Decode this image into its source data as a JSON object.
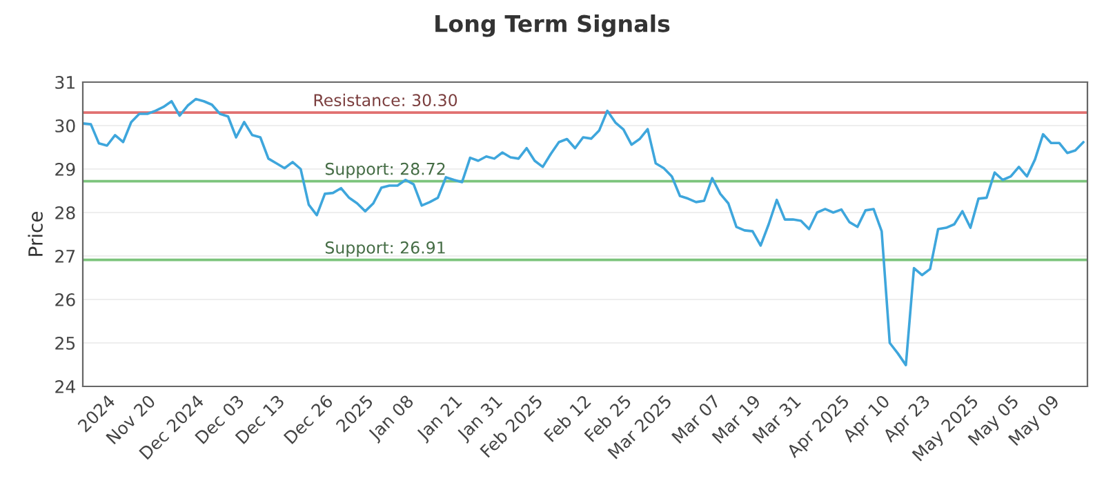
{
  "chart_data": {
    "type": "line",
    "title": "Long Term Signals",
    "ylabel": "Price",
    "categories": [
      null,
      null,
      null,
      "2024",
      null,
      null,
      null,
      null,
      "Nov 20",
      null,
      null,
      null,
      null,
      null,
      "Dec 2024",
      null,
      null,
      null,
      null,
      "Dec 03",
      null,
      null,
      null,
      null,
      "Dec 13",
      null,
      null,
      null,
      null,
      null,
      "Dec 26",
      null,
      null,
      null,
      null,
      "2025",
      null,
      null,
      null,
      null,
      "Jan 08",
      null,
      null,
      null,
      null,
      null,
      "Jan 21",
      null,
      null,
      null,
      null,
      "Jan 31",
      null,
      null,
      null,
      null,
      "Feb 2025",
      null,
      null,
      null,
      null,
      null,
      "Feb 12",
      null,
      null,
      null,
      null,
      "Feb 25",
      null,
      null,
      null,
      null,
      "Mar 2025",
      null,
      null,
      null,
      null,
      null,
      "Mar 07",
      null,
      null,
      null,
      null,
      "Mar 19",
      null,
      null,
      null,
      null,
      "Mar 31",
      null,
      null,
      null,
      null,
      null,
      "Apr 2025",
      null,
      null,
      null,
      null,
      "Apr 10",
      null,
      null,
      null,
      null,
      "Apr 23",
      null,
      null,
      null,
      null,
      null,
      "May 2025",
      null,
      null,
      null,
      null,
      "May 05",
      null,
      null,
      null,
      null,
      "May 09",
      null,
      null,
      null,
      null
    ],
    "series": [
      {
        "color": "#3ea6dc",
        "values": [
          30.05,
          30.03,
          29.59,
          29.54,
          29.78,
          29.62,
          30.08,
          30.27,
          30.27,
          30.34,
          30.43,
          30.56,
          30.23,
          30.46,
          30.61,
          30.56,
          30.48,
          30.27,
          30.21,
          29.73,
          30.08,
          29.78,
          29.73,
          29.24,
          29.13,
          29.02,
          29.16,
          29.0,
          28.18,
          27.94,
          28.43,
          28.45,
          28.56,
          28.34,
          28.21,
          28.03,
          28.21,
          28.57,
          28.62,
          28.62,
          28.75,
          28.65,
          28.16,
          28.24,
          28.34,
          28.81,
          28.75,
          28.7,
          29.26,
          29.19,
          29.29,
          29.24,
          29.38,
          29.27,
          29.24,
          29.48,
          29.19,
          29.05,
          29.35,
          29.62,
          29.69,
          29.48,
          29.73,
          29.7,
          29.89,
          30.34,
          30.07,
          29.91,
          29.56,
          29.69,
          29.92,
          29.13,
          29.02,
          28.83,
          28.38,
          28.32,
          28.24,
          28.27,
          28.79,
          28.43,
          28.21,
          27.67,
          27.59,
          27.57,
          27.24,
          27.73,
          28.29,
          27.84,
          27.84,
          27.81,
          27.62,
          28.0,
          28.08,
          28.0,
          28.07,
          27.78,
          27.67,
          28.05,
          28.08,
          27.57,
          25.0,
          24.76,
          24.49,
          26.72,
          26.56,
          26.7,
          27.62,
          27.65,
          27.73,
          28.03,
          27.65,
          28.32,
          28.34,
          28.92,
          28.75,
          28.83,
          29.05,
          28.83,
          29.22,
          29.8,
          29.6,
          29.6,
          29.37,
          29.43,
          29.62
        ]
      }
    ],
    "ylim": [
      24,
      31
    ],
    "yticks": [
      24,
      25,
      26,
      27,
      28,
      29,
      30,
      31
    ],
    "ref_lines": [
      {
        "axis": "y",
        "value": 30.3,
        "label": "Resistance: 30.30",
        "color": "#e07070"
      },
      {
        "axis": "y",
        "value": 28.72,
        "label": "Support: 28.72",
        "color": "#7cc47c"
      },
      {
        "axis": "y",
        "value": 26.91,
        "label": "Support: 26.91",
        "color": "#7cc47c"
      }
    ],
    "grid": "y",
    "marker": "none",
    "line_style": "solid"
  }
}
